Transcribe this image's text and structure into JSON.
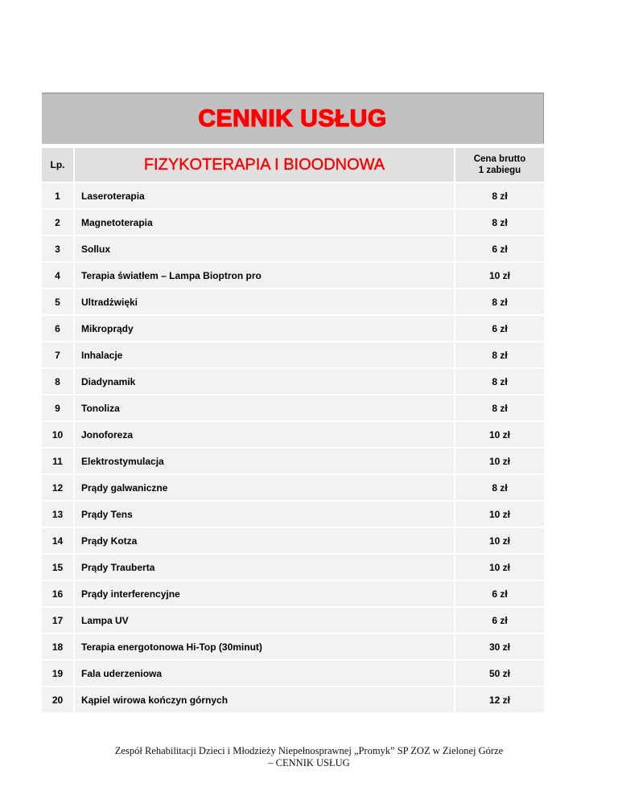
{
  "title": "CENNIK USŁUG",
  "header": {
    "lp": "Lp.",
    "section": "FIZYKOTERAPIA I BIOODNOWA",
    "price_line1": "Cena brutto",
    "price_line2": "1 zabiegu"
  },
  "rows": [
    {
      "lp": "1",
      "name": "Laseroterapia",
      "price": "8 zł"
    },
    {
      "lp": "2",
      "name": "Magnetoterapia",
      "price": "8 zł"
    },
    {
      "lp": "3",
      "name": "Sollux",
      "price": "6 zł"
    },
    {
      "lp": "4",
      "name": "Terapia światłem – Lampa Bioptron pro",
      "price": "10 zł"
    },
    {
      "lp": "5",
      "name": "Ultradżwięki",
      "price": "8 zł"
    },
    {
      "lp": "6",
      "name": "Mikroprądy",
      "price": "6 zł"
    },
    {
      "lp": "7",
      "name": "Inhalacje",
      "price": "8 zł"
    },
    {
      "lp": "8",
      "name": "Diadynamik",
      "price": "8 zł"
    },
    {
      "lp": "9",
      "name": "Tonoliza",
      "price": "8 zł"
    },
    {
      "lp": "10",
      "name": "Jonoforeza",
      "price": "10 zł"
    },
    {
      "lp": "11",
      "name": "Elektrostymulacja",
      "price": "10 zł"
    },
    {
      "lp": "12",
      "name": "Prądy galwaniczne",
      "price": "8 zł"
    },
    {
      "lp": "13",
      "name": "Prądy Tens",
      "price": "10 zł"
    },
    {
      "lp": "14",
      "name": "Prądy Kotza",
      "price": "10 zł"
    },
    {
      "lp": "15",
      "name": "Prądy Trauberta",
      "price": "10 zł"
    },
    {
      "lp": "16",
      "name": "Prądy interferencyjne",
      "price": "6 zł"
    },
    {
      "lp": "17",
      "name": "Lampa UV",
      "price": "6 zł"
    },
    {
      "lp": "18",
      "name": "Terapia energotonowa Hi-Top (30minut)",
      "price": "30 zł"
    },
    {
      "lp": "19",
      "name": "Fala uderzeniowa",
      "price": "50 zł"
    },
    {
      "lp": "20",
      "name": "Kąpiel wirowa kończyn górnych",
      "price": "12 zł"
    }
  ],
  "footer": {
    "line1": "Zespół Rehabilitacji Dzieci i Młodzieży Niepełnosprawnej „Promyk” SP ZOZ w Zielonej Górze",
    "line2": "– CENNIK USŁUG"
  },
  "colors": {
    "title": "#ff0000",
    "band": "#c0c0c0",
    "header": "#e0e0e0",
    "row": "#f2f2f2"
  }
}
